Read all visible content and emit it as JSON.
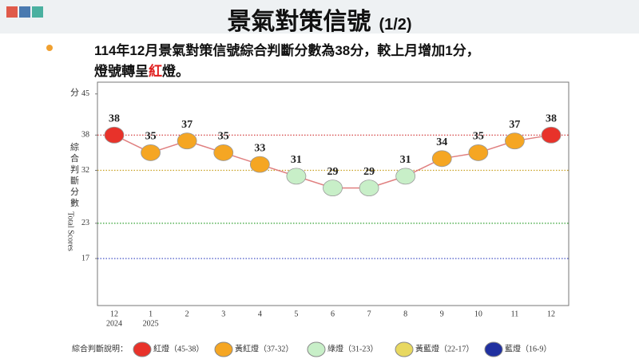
{
  "slide": {
    "title": "景氣對策信號",
    "page": "(1/2)",
    "bullet_line1": "114年12月景氣對策信號綜合判斷分數為38分，較上月增加1分，",
    "bullet_line2": [
      "燈號轉呈",
      "紅",
      "燈。"
    ]
  },
  "chart_data": {
    "type": "line",
    "categories": [
      "12",
      "1",
      "2",
      "3",
      "4",
      "5",
      "6",
      "7",
      "8",
      "9",
      "10",
      "11",
      "12"
    ],
    "category_years": [
      "2024",
      "2025",
      null,
      null,
      null,
      null,
      null,
      null,
      null,
      null,
      null,
      null,
      null
    ],
    "values": [
      38,
      35,
      37,
      35,
      33,
      31,
      29,
      29,
      31,
      34,
      35,
      37,
      38
    ],
    "point_colors": [
      "#e8322a",
      "#f5a623",
      "#f5a623",
      "#f5a623",
      "#f5a623",
      "#c8efc8",
      "#c8efc8",
      "#c8efc8",
      "#c8efc8",
      "#f5a623",
      "#f5a623",
      "#f5a623",
      "#e8322a"
    ],
    "color": "#e08080",
    "ylim": [
      9,
      47
    ],
    "yticks": [
      17,
      23,
      32,
      38,
      45
    ],
    "reference_lines": [
      {
        "value": 38,
        "color": "#d03030"
      },
      {
        "value": 32,
        "color": "#c8a020"
      },
      {
        "value": 23,
        "color": "#30a030"
      },
      {
        "value": 17,
        "color": "#3040c0"
      }
    ],
    "y_unit": "分",
    "ylabel": "綜合判斷分數",
    "ylabel_en": "Total Scores",
    "legend_title": "綜合判斷說明：",
    "legend": [
      {
        "name": "紅燈（45-38）",
        "color": "#e8322a"
      },
      {
        "name": "黃紅燈（37-32）",
        "color": "#f5a623"
      },
      {
        "name": "綠燈（31-23）",
        "color": "#c8efc8"
      },
      {
        "name": "黃藍燈（22-17）",
        "color": "#e8d860"
      },
      {
        "name": "藍燈（16-9）",
        "color": "#2030a0"
      }
    ]
  }
}
